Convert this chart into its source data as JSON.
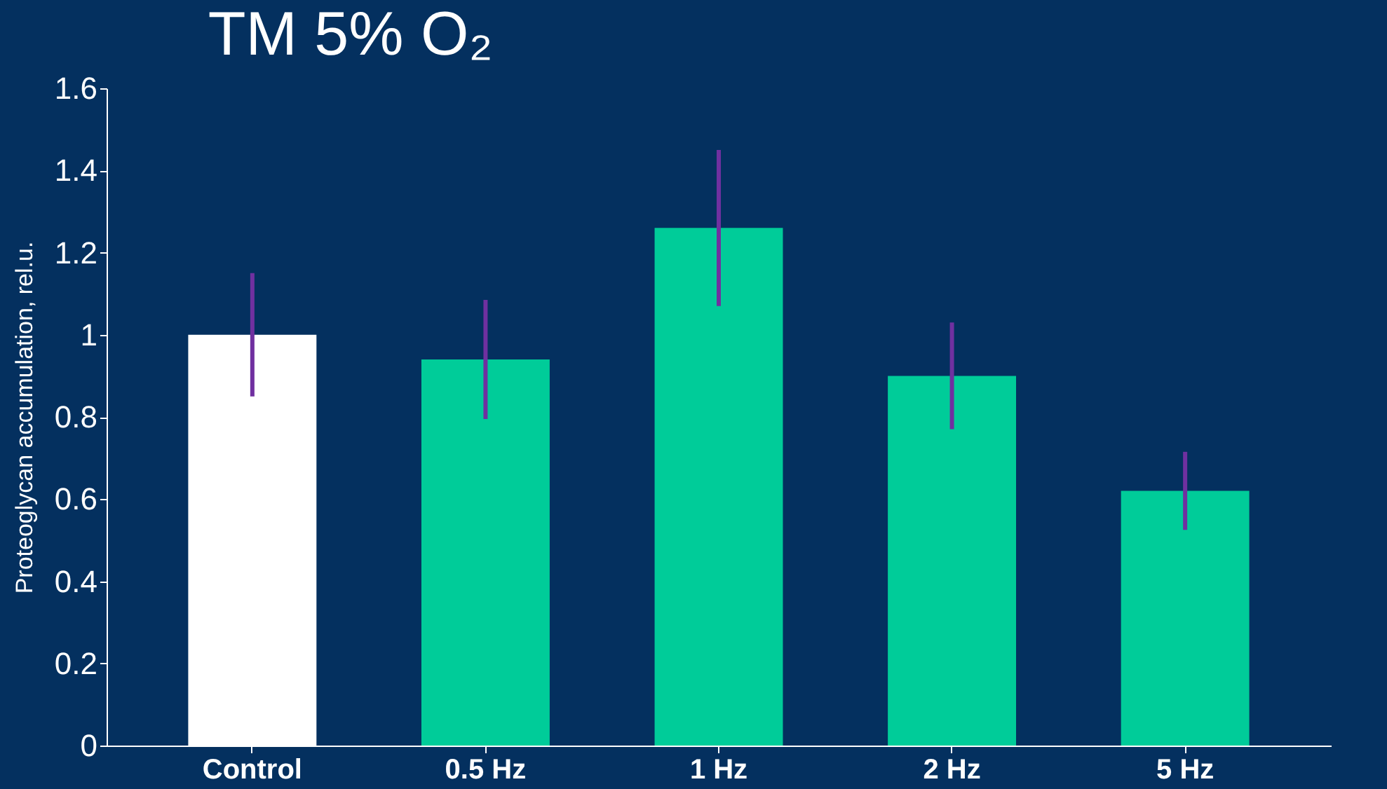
{
  "chart_data": {
    "type": "bar",
    "title": "TM 5% O₂",
    "ylabel": "Proteoglycan accumulation, rel.u.",
    "categories": [
      "Control",
      "0.5 Hz",
      "1 Hz",
      "2 Hz",
      "5 Hz"
    ],
    "values": [
      1.0,
      0.94,
      1.26,
      0.9,
      0.62
    ],
    "errors": [
      0.15,
      0.145,
      0.19,
      0.13,
      0.095
    ],
    "colors": [
      "#ffffff",
      "#00cc99",
      "#00cc99",
      "#00cc99",
      "#00cc99"
    ],
    "ylim": [
      0,
      1.6
    ],
    "yticks": [
      0,
      0.2,
      0.4,
      0.6,
      0.8,
      1,
      1.2,
      1.4,
      1.6
    ],
    "grid": false,
    "legend": false
  }
}
